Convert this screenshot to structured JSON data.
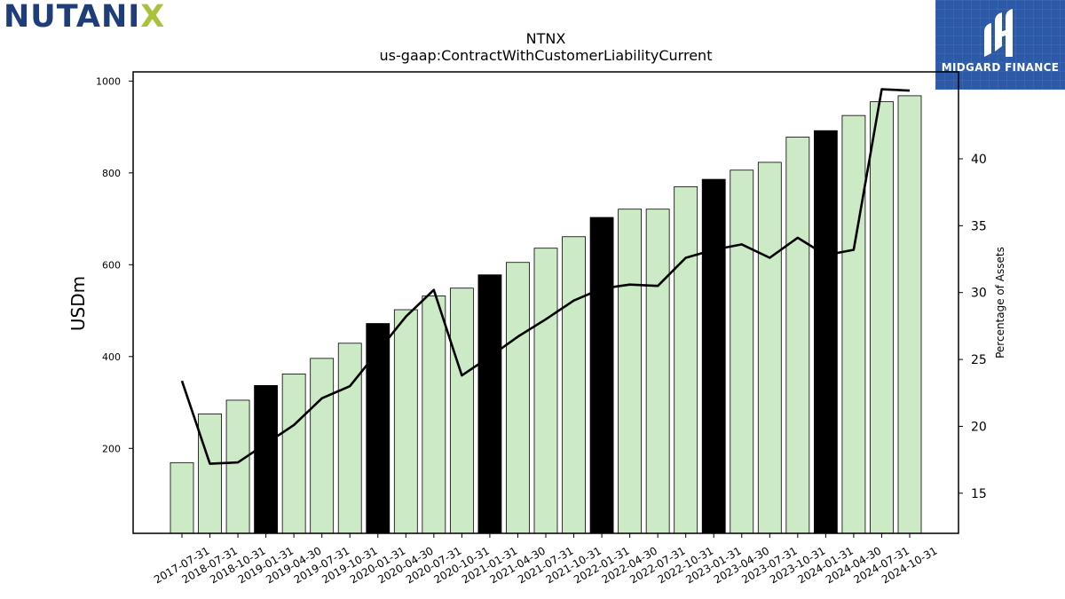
{
  "logos": {
    "nutanix_text_main": "NUTANI",
    "nutanix_text_x": "X",
    "midgard_text": "MIDGARD FINANCE"
  },
  "colors": {
    "regular_bar": "#cdeac6",
    "highlight_bar": "#000000",
    "line": "#000000",
    "midgard_bg": "#2c5aa8",
    "nutanix_blue": "#1f3d7a",
    "nutanix_green": "#a8c23a"
  },
  "chart_data": {
    "type": "bar",
    "title": "NTNX",
    "subtitle": "us-gaap:ContractWithCustomerLiabilityCurrent",
    "ylabel": "USDm",
    "ylabel_right": "Percentage of Assets",
    "ylim": [
      15,
      1020
    ],
    "yticks": [
      200,
      400,
      600,
      800,
      1000
    ],
    "ylim_right": [
      12,
      46.5
    ],
    "yticks_right": [
      15,
      20,
      25,
      30,
      35,
      40
    ],
    "grid": false,
    "categories": [
      "2017-07-31",
      "2018-07-31",
      "2018-10-31",
      "2019-01-31",
      "2019-04-30",
      "2019-07-31",
      "2019-10-31",
      "2020-01-31",
      "2020-04-30",
      "2020-07-31",
      "2020-10-31",
      "2021-01-31",
      "2021-04-30",
      "2021-07-31",
      "2021-10-31",
      "2022-01-31",
      "2022-04-30",
      "2022-07-31",
      "2022-10-31",
      "2023-01-31",
      "2023-04-30",
      "2023-07-31",
      "2023-10-31",
      "2024-01-31",
      "2024-04-30",
      "2024-07-31",
      "2024-10-31"
    ],
    "series": [
      {
        "type": "bar",
        "axis": "left",
        "values": [
          169,
          275,
          305,
          337,
          362,
          396,
          429,
          472,
          502,
          532,
          549,
          578,
          605,
          636,
          661,
          703,
          721,
          721,
          770,
          786,
          806,
          823,
          878,
          892,
          925,
          955,
          968
        ],
        "highlight": [
          false,
          false,
          false,
          true,
          false,
          false,
          false,
          true,
          false,
          false,
          false,
          true,
          false,
          false,
          false,
          true,
          false,
          false,
          false,
          true,
          false,
          false,
          false,
          true,
          false,
          false,
          false
        ]
      },
      {
        "type": "line",
        "axis": "right",
        "values": [
          23.4,
          17.2,
          17.3,
          18.7,
          20.1,
          22.1,
          23.0,
          25.6,
          28.2,
          30.2,
          23.8,
          25.2,
          26.7,
          28.0,
          29.4,
          30.3,
          30.6,
          30.5,
          32.6,
          33.2,
          33.6,
          32.6,
          34.1,
          32.8,
          33.2,
          45.2,
          45.1
        ]
      }
    ]
  }
}
